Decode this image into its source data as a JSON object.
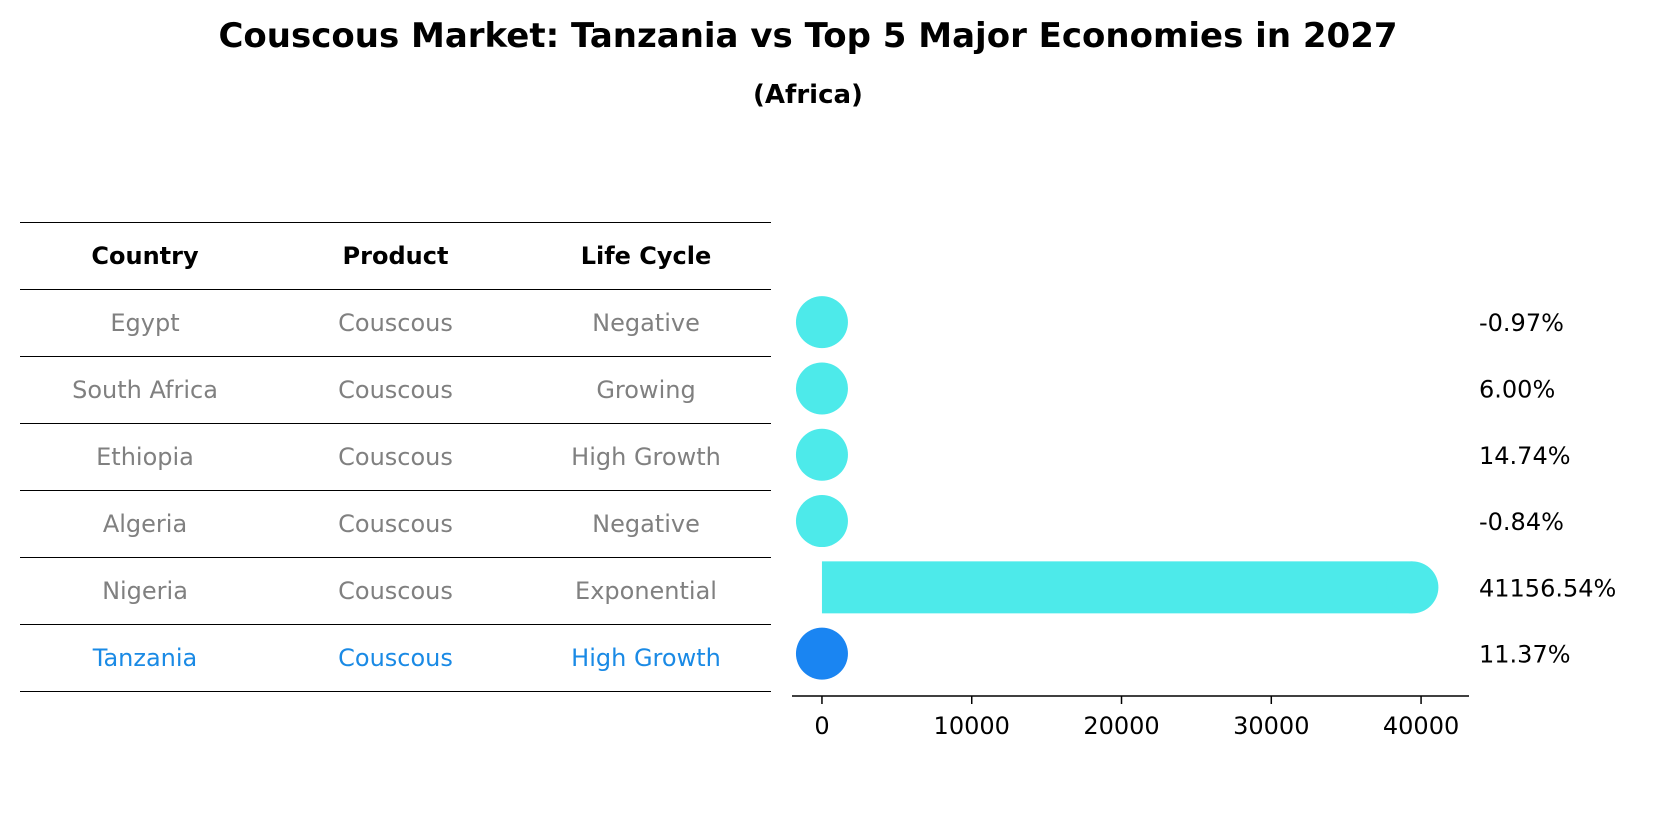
{
  "title": "Couscous Market: Tanzania vs Top 5 Major Economies in 2027",
  "subtitle": "(Africa)",
  "table": {
    "headers": [
      "Country",
      "Product",
      "Life Cycle"
    ],
    "rows": [
      {
        "country": "Egypt",
        "product": "Couscous",
        "life_cycle": "Negative"
      },
      {
        "country": "South Africa",
        "product": "Couscous",
        "life_cycle": "Growing"
      },
      {
        "country": "Ethiopia",
        "product": "Couscous",
        "life_cycle": "High Growth"
      },
      {
        "country": "Algeria",
        "product": "Couscous",
        "life_cycle": "Negative"
      },
      {
        "country": "Nigeria",
        "product": "Couscous",
        "life_cycle": "Exponential"
      },
      {
        "country": "Tanzania",
        "product": "Couscous",
        "life_cycle": "High Growth"
      }
    ]
  },
  "chart_data": {
    "type": "bar",
    "orientation": "horizontal",
    "categories": [
      "Egypt",
      "South Africa",
      "Ethiopia",
      "Algeria",
      "Nigeria",
      "Tanzania"
    ],
    "values": [
      -0.97,
      6.0,
      14.74,
      -0.84,
      41156.54,
      11.37
    ],
    "value_labels": [
      "-0.97%",
      "6.00%",
      "14.74%",
      "-0.84%",
      "41156.54%",
      "11.37%"
    ],
    "highlight": "Tanzania",
    "xlim": [
      -2000,
      43200
    ],
    "xticks": [
      0,
      10000,
      20000,
      30000,
      40000
    ],
    "xtick_labels": [
      "0",
      "10000",
      "20000",
      "30000",
      "40000"
    ],
    "colors": {
      "default": "#4deaea",
      "highlight": "#1a85f2",
      "table_text": "#808080",
      "highlight_text": "#1a8ae5"
    }
  }
}
